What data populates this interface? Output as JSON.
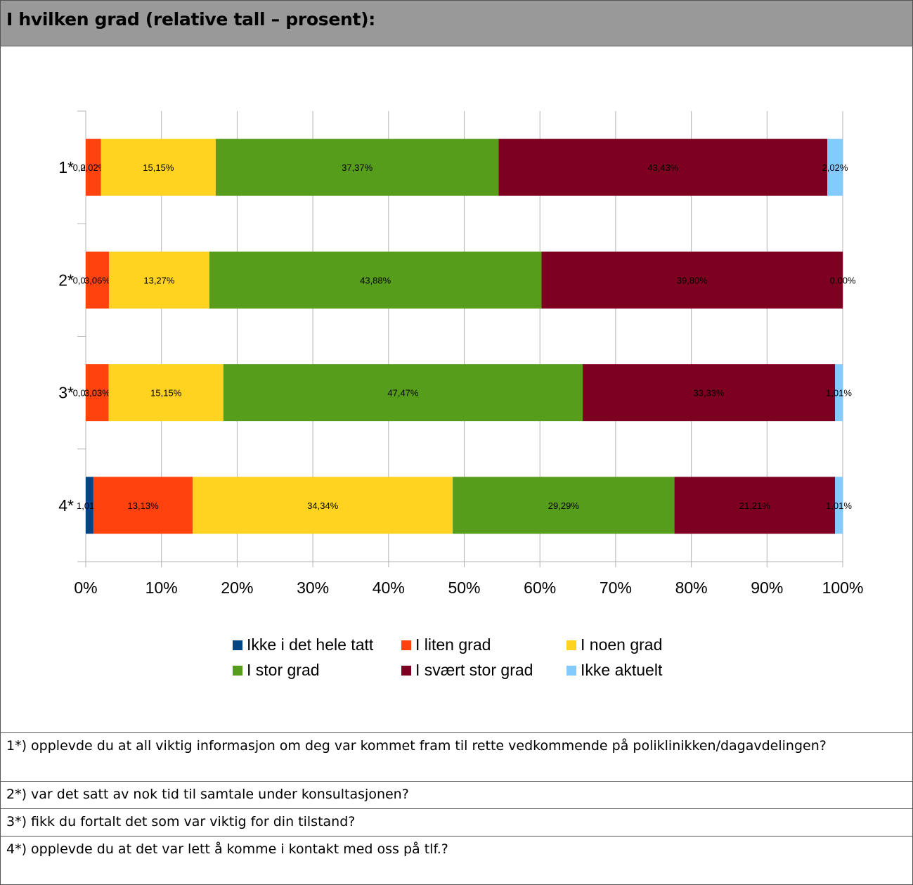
{
  "header": {
    "title": "I hvilken grad (relative tall – prosent):"
  },
  "chart_data": {
    "type": "bar",
    "orientation": "horizontal",
    "stacked": "percent",
    "categories": [
      "1*",
      "2*",
      "3*",
      "4*"
    ],
    "x_ticks": [
      "0%",
      "10%",
      "20%",
      "30%",
      "40%",
      "50%",
      "60%",
      "70%",
      "80%",
      "90%",
      "100%"
    ],
    "xlim": [
      0,
      100
    ],
    "grid": true,
    "legend_position": "bottom",
    "series": [
      {
        "name": "Ikke i det hele tatt",
        "color": "#004586",
        "values": [
          0.0,
          0.0,
          0.0,
          1.01
        ],
        "labels": [
          "0,00%",
          "0,00%",
          "0,00%",
          "1,01%"
        ]
      },
      {
        "name": "I liten grad",
        "color": "#ff420e",
        "values": [
          2.02,
          3.06,
          3.03,
          13.13
        ],
        "labels": [
          "2,02%",
          "3,06%",
          "3,03%",
          "13,13%"
        ]
      },
      {
        "name": "I noen grad",
        "color": "#ffd320",
        "values": [
          15.15,
          13.27,
          15.15,
          34.34
        ],
        "labels": [
          "15,15%",
          "13,27%",
          "15,15%",
          "34,34%"
        ]
      },
      {
        "name": "I stor grad",
        "color": "#579d1c",
        "values": [
          37.37,
          43.88,
          47.47,
          29.29
        ],
        "labels": [
          "37,37%",
          "43,88%",
          "47,47%",
          "29,29%"
        ]
      },
      {
        "name": "I svært stor grad",
        "color": "#7e0021",
        "values": [
          43.43,
          39.8,
          33.33,
          21.21
        ],
        "labels": [
          "43,43%",
          "39,80%",
          "33,33%",
          "21,21%"
        ]
      },
      {
        "name": "Ikke aktuelt",
        "color": "#83caff",
        "values": [
          2.02,
          0.0,
          1.01,
          1.01
        ],
        "labels": [
          "2,02%",
          "0,00%",
          "1,01%",
          "1,01%"
        ]
      }
    ]
  },
  "notes": [
    "1*) opplevde du at all viktig informasjon om deg var kommet fram til rette vedkommende på poliklinikken/dagavdelingen?",
    "2*) var det satt av nok tid til samtale under konsultasjonen?",
    "3*) fikk du fortalt det som var viktig for din tilstand?",
    "4*) opplevde du at det var lett å komme i kontakt med oss på tlf.?"
  ]
}
